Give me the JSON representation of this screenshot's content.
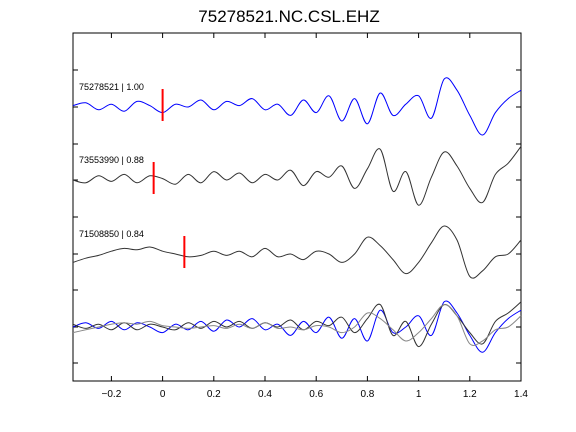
{
  "chart_data": {
    "type": "line",
    "title": "75278521.NC.CSL.EHZ",
    "xlabel": "",
    "ylabel": "",
    "xlim": [
      -0.35,
      1.4
    ],
    "xticks": [
      -0.2,
      0,
      0.2,
      0.4,
      0.6,
      0.8,
      1,
      1.2,
      1.4
    ],
    "xtick_labels": [
      "−0.2",
      "0",
      "0.2",
      "0.4",
      "0.6",
      "0.8",
      "1",
      "1.2",
      "1.4"
    ],
    "grid": false,
    "colors": {
      "reference": "#0000ff",
      "match": "#333333",
      "overlay": "#888888",
      "pick": "#ff0000"
    },
    "traces": [
      {
        "name": "75278521",
        "label": "75278521 | 1.00",
        "color": "#0000ff",
        "pick": 0.0,
        "x": [
          -0.35,
          -0.3,
          -0.25,
          -0.2,
          -0.15,
          -0.1,
          -0.05,
          0,
          0.05,
          0.1,
          0.15,
          0.2,
          0.25,
          0.3,
          0.35,
          0.4,
          0.45,
          0.5,
          0.55,
          0.6,
          0.65,
          0.7,
          0.75,
          0.8,
          0.85,
          0.9,
          0.95,
          1,
          1.05,
          1.1,
          1.15,
          1.2,
          1.25,
          1.3,
          1.35,
          1.4
        ],
        "y": [
          0.05,
          0.15,
          -0.1,
          0.1,
          -0.15,
          0.2,
          0.05,
          -0.2,
          0.1,
          0.0,
          0.25,
          -0.1,
          0.2,
          0.05,
          0.3,
          -0.1,
          0.1,
          -0.3,
          0.25,
          -0.2,
          0.4,
          -0.5,
          0.3,
          -0.6,
          0.5,
          -0.3,
          0.1,
          0.4,
          -0.4,
          1.0,
          0.6,
          -0.3,
          -1.0,
          -0.2,
          0.3,
          0.6
        ]
      },
      {
        "name": "73553990",
        "label": "73553990 | 0.88",
        "color": "#333333",
        "pick": -0.035,
        "x": [
          -0.35,
          -0.3,
          -0.25,
          -0.2,
          -0.15,
          -0.1,
          -0.05,
          0,
          0.05,
          0.1,
          0.15,
          0.2,
          0.25,
          0.3,
          0.35,
          0.4,
          0.45,
          0.5,
          0.55,
          0.6,
          0.65,
          0.7,
          0.75,
          0.8,
          0.85,
          0.9,
          0.95,
          1,
          1.05,
          1.1,
          1.15,
          1.2,
          1.25,
          1.3,
          1.35,
          1.4
        ],
        "y": [
          0.0,
          -0.1,
          0.15,
          -0.05,
          0.2,
          -0.1,
          0.15,
          0.05,
          -0.15,
          0.2,
          -0.1,
          0.3,
          0.0,
          0.25,
          -0.1,
          0.2,
          0.0,
          0.35,
          -0.2,
          0.3,
          0.1,
          0.5,
          -0.3,
          0.4,
          1.1,
          -0.4,
          0.3,
          -0.9,
          0.1,
          1.0,
          0.5,
          -0.3,
          -0.8,
          0.2,
          0.6,
          1.2
        ]
      },
      {
        "name": "71508850",
        "label": "71508850 | 0.84",
        "color": "#333333",
        "pick": 0.085,
        "x": [
          -0.35,
          -0.3,
          -0.25,
          -0.2,
          -0.15,
          -0.1,
          -0.05,
          0,
          0.05,
          0.1,
          0.15,
          0.2,
          0.25,
          0.3,
          0.35,
          0.4,
          0.45,
          0.5,
          0.55,
          0.6,
          0.65,
          0.7,
          0.75,
          0.8,
          0.85,
          0.9,
          0.95,
          1,
          1.05,
          1.1,
          1.15,
          1.2,
          1.25,
          1.3,
          1.35,
          1.4
        ],
        "y": [
          -0.3,
          -0.15,
          -0.05,
          0.1,
          0.2,
          0.15,
          0.25,
          0.1,
          0.0,
          -0.1,
          -0.05,
          0.1,
          -0.05,
          0.1,
          -0.1,
          0.2,
          -0.1,
          0.0,
          -0.2,
          0.1,
          0.0,
          -0.3,
          0.0,
          0.6,
          0.3,
          -0.2,
          -0.7,
          -0.3,
          0.4,
          1.0,
          0.5,
          -0.8,
          -0.6,
          -0.1,
          0.0,
          0.5
        ]
      }
    ],
    "overlay": {
      "x": [
        -0.35,
        -0.3,
        -0.25,
        -0.2,
        -0.15,
        -0.1,
        -0.05,
        0,
        0.05,
        0.1,
        0.15,
        0.2,
        0.25,
        0.3,
        0.35,
        0.4,
        0.45,
        0.5,
        0.55,
        0.6,
        0.65,
        0.7,
        0.75,
        0.8,
        0.85,
        0.9,
        0.95,
        1,
        1.05,
        1.1,
        1.15,
        1.2,
        1.25,
        1.3,
        1.35,
        1.4
      ],
      "series": [
        {
          "name": "75278521",
          "color": "#0000ff",
          "y": [
            0.0,
            0.15,
            -0.05,
            0.2,
            -0.1,
            0.15,
            0.0,
            -0.2,
            0.1,
            -0.1,
            0.2,
            -0.15,
            0.25,
            0.0,
            0.3,
            -0.1,
            0.1,
            -0.3,
            0.2,
            -0.2,
            0.35,
            -0.4,
            0.3,
            -0.5,
            0.6,
            -0.2,
            0.0,
            0.4,
            -0.3,
            0.9,
            0.5,
            -0.3,
            -0.9,
            -0.2,
            0.3,
            0.6
          ]
        },
        {
          "name": "73553990",
          "color": "#333333",
          "y": [
            0.1,
            -0.05,
            0.1,
            -0.1,
            0.15,
            -0.1,
            0.1,
            0.0,
            -0.1,
            0.15,
            -0.05,
            0.2,
            0.0,
            0.2,
            -0.05,
            0.15,
            0.0,
            0.25,
            -0.1,
            0.2,
            0.05,
            0.35,
            -0.2,
            0.3,
            0.8,
            -0.3,
            0.2,
            -0.7,
            0.1,
            0.8,
            0.4,
            -0.2,
            -0.6,
            0.2,
            0.5,
            0.9
          ]
        },
        {
          "name": "71508850",
          "color": "#888888",
          "y": [
            -0.2,
            -0.1,
            0.0,
            0.1,
            0.15,
            0.1,
            0.2,
            0.05,
            0.0,
            -0.05,
            0.0,
            0.05,
            -0.05,
            0.1,
            -0.05,
            0.15,
            -0.05,
            0.0,
            -0.1,
            0.05,
            0.0,
            -0.2,
            0.0,
            0.5,
            0.3,
            -0.1,
            -0.5,
            -0.2,
            0.3,
            0.8,
            0.4,
            -0.6,
            -0.5,
            -0.1,
            0.0,
            0.4
          ]
        }
      ]
    }
  }
}
